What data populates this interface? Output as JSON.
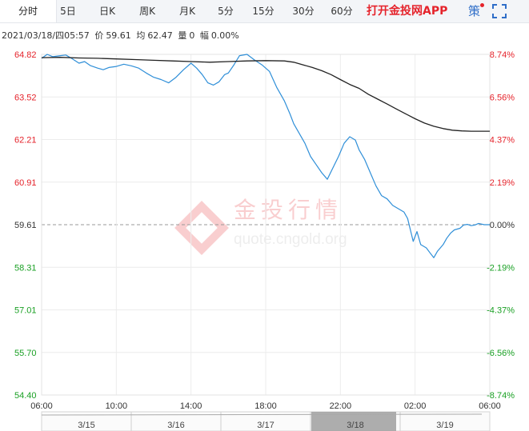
{
  "tabs": [
    {
      "label": "分时",
      "active": true
    },
    {
      "label": "5日",
      "active": false
    },
    {
      "label": "日K",
      "active": false
    },
    {
      "label": "周K",
      "active": false
    },
    {
      "label": "月K",
      "active": false
    },
    {
      "label": "5分",
      "active": false
    },
    {
      "label": "15分",
      "active": false
    },
    {
      "label": "30分",
      "active": false
    },
    {
      "label": "60分",
      "active": false
    }
  ],
  "app_link": "打开金投网APP",
  "strategy_label": "策",
  "info": {
    "datetime": "2021/03/18/四05:57",
    "price_label": "价",
    "price": "59.61",
    "avg_label": "均",
    "avg": "62.47",
    "vol_label": "量",
    "vol": "0",
    "change_label": "幅",
    "change": "0.00%"
  },
  "watermark": {
    "brand": "金投行情",
    "url": "quote.cngold.org"
  },
  "colors": {
    "price_line": "#2f8fd8",
    "avg_line": "#222222",
    "up": "#e5232b",
    "down": "#1aa024",
    "grid": "#ececec",
    "ref_line": "#999999"
  },
  "chart_data": {
    "type": "line",
    "title": "",
    "xlabel": "",
    "ylabel": "",
    "ylim": [
      54.4,
      64.82
    ],
    "reference_price": 59.61,
    "y_ticks": [
      "64.82",
      "63.52",
      "62.21",
      "60.91",
      "59.61",
      "58.31",
      "57.01",
      "55.70",
      "54.40"
    ],
    "y_ticks_right": [
      "8.74%",
      "6.56%",
      "4.37%",
      "2.19%",
      "0.00%",
      "-2.19%",
      "-4.37%",
      "-6.56%",
      "-8.74%"
    ],
    "x_ticks": [
      "06:00",
      "10:00",
      "14:00",
      "18:00",
      "22:00",
      "02:00",
      "06:00"
    ],
    "x_range_hours": [
      0,
      24
    ],
    "series": [
      {
        "key": "price",
        "x": [
          0,
          0.3,
          0.6,
          1,
          1.3,
          1.6,
          2,
          2.3,
          2.6,
          3,
          3.3,
          3.6,
          4,
          4.4,
          4.8,
          5.2,
          5.6,
          6,
          6.4,
          6.8,
          7.2,
          7.6,
          8,
          8.3,
          8.6,
          8.9,
          9.2,
          9.5,
          9.8,
          10,
          10.3,
          10.6,
          11,
          11.4,
          11.8,
          12.2,
          12.6,
          13,
          13.3,
          13.5,
          13.8,
          14.1,
          14.4,
          14.7,
          15,
          15.3,
          15.6,
          15.9,
          16.2,
          16.5,
          16.8,
          17,
          17.3,
          17.6,
          17.9,
          18.2,
          18.5,
          18.8,
          19.1,
          19.4,
          19.6,
          19.9,
          20.1,
          20.3,
          20.6,
          20.8,
          21.0,
          21.2,
          21.5,
          21.7,
          21.9,
          22.1,
          22.4,
          22.6,
          22.8,
          23.0,
          23.2,
          23.4,
          23.7,
          24.0
        ],
        "y": [
          64.7,
          64.82,
          64.75,
          64.78,
          64.8,
          64.7,
          64.55,
          64.6,
          64.48,
          64.4,
          64.35,
          64.42,
          64.45,
          64.52,
          64.47,
          64.4,
          64.25,
          64.12,
          64.05,
          63.95,
          64.12,
          64.35,
          64.55,
          64.4,
          64.2,
          63.95,
          63.88,
          63.98,
          64.2,
          64.25,
          64.5,
          64.78,
          64.82,
          64.65,
          64.5,
          64.3,
          63.8,
          63.4,
          63.0,
          62.7,
          62.4,
          62.1,
          61.7,
          61.45,
          61.2,
          61.0,
          61.35,
          61.7,
          62.1,
          62.3,
          62.2,
          61.9,
          61.6,
          61.2,
          60.8,
          60.5,
          60.4,
          60.2,
          60.1,
          60.0,
          59.8,
          59.1,
          59.4,
          59.0,
          58.9,
          58.75,
          58.6,
          58.8,
          59.0,
          59.2,
          59.35,
          59.45,
          59.5,
          59.6,
          59.62,
          59.58,
          59.6,
          59.65,
          59.61,
          59.61
        ]
      },
      {
        "key": "avg",
        "x": [
          0,
          1,
          2,
          3,
          4,
          5,
          6,
          7,
          8,
          9,
          10,
          11,
          12,
          13,
          13.5,
          14,
          14.5,
          15,
          15.5,
          16,
          16.5,
          17,
          17.5,
          18,
          18.5,
          19,
          19.5,
          20,
          20.5,
          21,
          21.5,
          22,
          22.5,
          23,
          23.5,
          24
        ],
        "y": [
          64.72,
          64.73,
          64.71,
          64.7,
          64.68,
          64.66,
          64.64,
          64.62,
          64.6,
          64.58,
          64.6,
          64.62,
          64.63,
          64.62,
          64.58,
          64.5,
          64.42,
          64.32,
          64.2,
          64.05,
          63.9,
          63.78,
          63.6,
          63.45,
          63.3,
          63.15,
          63.0,
          62.85,
          62.72,
          62.62,
          62.55,
          62.5,
          62.48,
          62.47,
          62.47,
          62.47
        ]
      }
    ]
  },
  "navigator": {
    "labels": [
      "3/15",
      "3/16",
      "3/17",
      "3/18",
      "3/19"
    ],
    "selected_index": 3
  }
}
